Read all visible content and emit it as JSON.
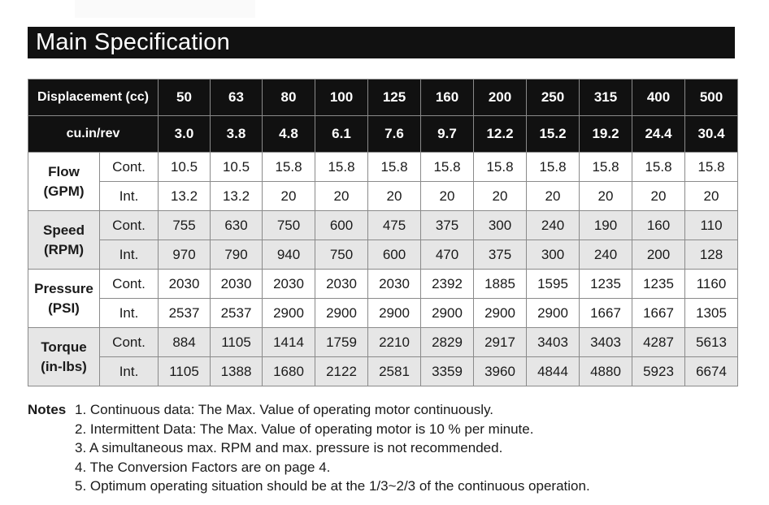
{
  "title": "Main Specification",
  "header": {
    "displacement_label": "Displacement (cc)",
    "displacement": [
      "50",
      "63",
      "80",
      "100",
      "125",
      "160",
      "200",
      "250",
      "315",
      "400",
      "500"
    ],
    "cuin_label": "cu.in/rev",
    "cuin": [
      "3.0",
      "3.8",
      "4.8",
      "6.1",
      "7.6",
      "9.7",
      "12.2",
      "15.2",
      "19.2",
      "24.4",
      "30.4"
    ]
  },
  "groups": [
    {
      "label_line1": "Flow",
      "label_line2": "(GPM)",
      "shaded": false,
      "rows": [
        {
          "type": "Cont.",
          "values": [
            "10.5",
            "10.5",
            "15.8",
            "15.8",
            "15.8",
            "15.8",
            "15.8",
            "15.8",
            "15.8",
            "15.8",
            "15.8"
          ]
        },
        {
          "type": "Int.",
          "values": [
            "13.2",
            "13.2",
            "20",
            "20",
            "20",
            "20",
            "20",
            "20",
            "20",
            "20",
            "20"
          ]
        }
      ]
    },
    {
      "label_line1": "Speed",
      "label_line2": "(RPM)",
      "shaded": true,
      "rows": [
        {
          "type": "Cont.",
          "values": [
            "755",
            "630",
            "750",
            "600",
            "475",
            "375",
            "300",
            "240",
            "190",
            "160",
            "110"
          ]
        },
        {
          "type": "Int.",
          "values": [
            "970",
            "790",
            "940",
            "750",
            "600",
            "470",
            "375",
            "300",
            "240",
            "200",
            "128"
          ]
        }
      ]
    },
    {
      "label_line1": "Pressure",
      "label_line2": "(PSI)",
      "shaded": false,
      "rows": [
        {
          "type": "Cont.",
          "values": [
            "2030",
            "2030",
            "2030",
            "2030",
            "2030",
            "2392",
            "1885",
            "1595",
            "1235",
            "1235",
            "1160"
          ]
        },
        {
          "type": "Int.",
          "values": [
            "2537",
            "2537",
            "2900",
            "2900",
            "2900",
            "2900",
            "2900",
            "2900",
            "1667",
            "1667",
            "1305"
          ]
        }
      ]
    },
    {
      "label_line1": "Torque",
      "label_line2": "(in-lbs)",
      "shaded": true,
      "rows": [
        {
          "type": "Cont.",
          "values": [
            "884",
            "1105",
            "1414",
            "1759",
            "2210",
            "2829",
            "2917",
            "3403",
            "3403",
            "4287",
            "5613"
          ]
        },
        {
          "type": "Int.",
          "values": [
            "1105",
            "1388",
            "1680",
            "2122",
            "2581",
            "3359",
            "3960",
            "4844",
            "4880",
            "5923",
            "6674"
          ]
        }
      ]
    }
  ],
  "notes": {
    "label": "Notes",
    "items": [
      "1. Continuous data: The Max. Value of operating motor continuously.",
      "2. Intermittent Data: The Max. Value of operating motor is 10 % per minute.",
      "3. A simultaneous max. RPM and max. pressure is not recommended.",
      "4. The Conversion Factors are on page 4.",
      "5. Optimum operating situation should be at the 1/3~2/3 of the continuous operation."
    ]
  }
}
